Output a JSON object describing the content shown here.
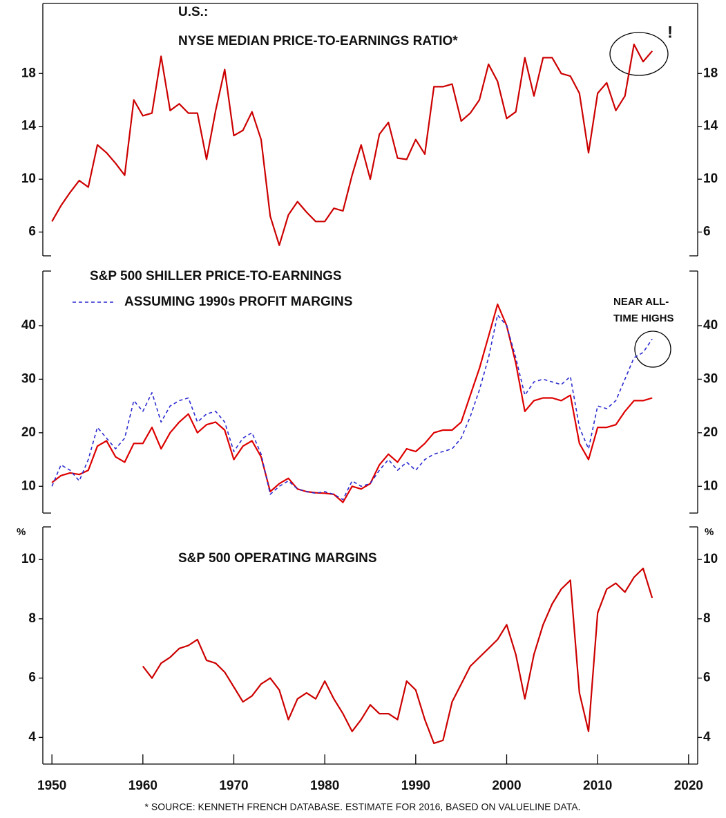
{
  "chart_data": [
    {
      "type": "line",
      "title": "U.S.:",
      "subtitle": "NYSE MEDIAN PRICE-TO-EARNINGS RATIO*",
      "annotation": "!",
      "xlim": [
        1949,
        2021
      ],
      "ylim": [
        4.2,
        23.3
      ],
      "yticks": [
        6,
        10,
        14,
        18
      ],
      "x": [
        1950,
        1951,
        1952,
        1953,
        1954,
        1955,
        1956,
        1957,
        1958,
        1959,
        1960,
        1961,
        1962,
        1963,
        1964,
        1965,
        1966,
        1967,
        1968,
        1969,
        1970,
        1971,
        1972,
        1973,
        1974,
        1975,
        1976,
        1977,
        1978,
        1979,
        1980,
        1981,
        1982,
        1983,
        1984,
        1985,
        1986,
        1987,
        1988,
        1989,
        1990,
        1991,
        1992,
        1993,
        1994,
        1995,
        1996,
        1997,
        1998,
        1999,
        2000,
        2001,
        2002,
        2003,
        2004,
        2005,
        2006,
        2007,
        2008,
        2009,
        2010,
        2011,
        2012,
        2013,
        2014,
        2015,
        2016
      ],
      "series": [
        {
          "color": "#cc0000",
          "values": [
            6.8,
            8,
            9,
            9.9,
            9.4,
            12.6,
            12,
            11.2,
            10.3,
            16,
            14.8,
            15,
            19.3,
            15.2,
            15.7,
            15,
            15,
            11.5,
            15.2,
            18.3,
            13.3,
            13.7,
            15.1,
            13,
            7.2,
            5,
            7.3,
            8.3,
            7.5,
            6.8,
            6.8,
            7.8,
            7.6,
            10.3,
            12.6,
            10,
            13.4,
            14.3,
            11.6,
            11.5,
            13,
            11.9,
            17,
            17,
            17.2,
            14.4,
            15,
            16,
            18.7,
            17.4,
            14.6,
            15.1,
            19.2,
            16.3,
            19.2,
            19.2,
            18,
            17.8,
            16.5,
            12,
            16.5,
            17.3,
            15.2,
            16.3,
            20.2,
            18.9,
            19.7
          ]
        }
      ]
    },
    {
      "type": "line",
      "annotation": [
        "NEAR ALL-",
        "TIME HIGHS"
      ],
      "xlim": [
        1949,
        2021
      ],
      "ylim": [
        5,
        50.2
      ],
      "yticks": [
        10,
        20,
        30,
        40
      ],
      "x": [
        1950,
        1951,
        1952,
        1953,
        1954,
        1955,
        1956,
        1957,
        1958,
        1959,
        1960,
        1961,
        1962,
        1963,
        1964,
        1965,
        1966,
        1967,
        1968,
        1969,
        1970,
        1971,
        1972,
        1973,
        1974,
        1975,
        1976,
        1977,
        1978,
        1979,
        1980,
        1981,
        1982,
        1983,
        1984,
        1985,
        1986,
        1987,
        1988,
        1989,
        1990,
        1991,
        1992,
        1993,
        1994,
        1995,
        1996,
        1997,
        1998,
        1999,
        2000,
        2001,
        2002,
        2003,
        2004,
        2005,
        2006,
        2007,
        2008,
        2009,
        2010,
        2011,
        2012,
        2013,
        2014,
        2015,
        2016
      ],
      "series": [
        {
          "name": "S&P 500 SHILLER PRICE-TO-EARNINGS",
          "color": "#dd0000",
          "dashed": false,
          "values": [
            10.7,
            12,
            12.5,
            12.2,
            13,
            17.5,
            18.5,
            15.5,
            14.5,
            18,
            18,
            21,
            17,
            20,
            22,
            23.5,
            20,
            21.5,
            22,
            20.5,
            15,
            17.5,
            18.5,
            15.5,
            9,
            10.5,
            11.5,
            9.5,
            9,
            8.8,
            8.7,
            8.5,
            7,
            10,
            9.5,
            10.5,
            14,
            16,
            14.5,
            17,
            16.5,
            18,
            20,
            20.5,
            20.5,
            22,
            27,
            32,
            38,
            44,
            40,
            33,
            24,
            26,
            26.5,
            26.5,
            26,
            27,
            18,
            15,
            21,
            21,
            21.5,
            24,
            26,
            26,
            26.5
          ]
        },
        {
          "name": "ASSUMING 1990s PROFIT MARGINS",
          "color": "#2a2ad0",
          "dashed": true,
          "values": [
            10,
            14,
            13,
            11,
            15,
            21,
            19,
            17,
            19,
            26,
            24,
            27.5,
            22,
            25,
            26,
            26.5,
            22,
            23.5,
            24,
            22,
            16.5,
            19,
            20,
            16,
            8.5,
            10,
            11,
            9.5,
            9,
            8.7,
            9,
            8.5,
            7.5,
            11,
            10,
            10.5,
            13,
            15,
            13,
            14.5,
            13,
            15,
            16,
            16.5,
            17,
            19,
            23,
            28,
            34,
            42,
            40,
            34,
            27,
            29.5,
            30,
            29.5,
            29,
            30.5,
            21,
            17,
            25,
            24.5,
            26,
            30,
            34,
            35,
            37.5
          ]
        }
      ]
    },
    {
      "type": "line",
      "title": "S&P 500 OPERATING MARGINS",
      "unit": "%",
      "xlim": [
        1949,
        2021
      ],
      "xticks": [
        1950,
        1960,
        1970,
        1980,
        1990,
        2000,
        2010,
        2020
      ],
      "ylim": [
        3.1,
        11.1
      ],
      "yticks": [
        4,
        6,
        8,
        10
      ],
      "x": [
        1960,
        1961,
        1962,
        1963,
        1964,
        1965,
        1966,
        1967,
        1968,
        1969,
        1970,
        1971,
        1972,
        1973,
        1974,
        1975,
        1976,
        1977,
        1978,
        1979,
        1980,
        1981,
        1982,
        1983,
        1984,
        1985,
        1986,
        1987,
        1988,
        1989,
        1990,
        1991,
        1992,
        1993,
        1994,
        1995,
        1996,
        1997,
        1998,
        1999,
        2000,
        2001,
        2002,
        2003,
        2004,
        2005,
        2006,
        2007,
        2008,
        2009,
        2010,
        2011,
        2012,
        2013,
        2014,
        2015,
        2016
      ],
      "series": [
        {
          "color": "#cc0000",
          "values": [
            6.4,
            6,
            6.5,
            6.7,
            7,
            7.1,
            7.3,
            6.6,
            6.5,
            6.2,
            5.7,
            5.2,
            5.4,
            5.8,
            6,
            5.6,
            4.6,
            5.3,
            5.5,
            5.3,
            5.9,
            5.3,
            4.8,
            4.2,
            4.6,
            5.1,
            4.8,
            4.8,
            4.6,
            5.9,
            5.6,
            4.6,
            3.8,
            3.9,
            5.2,
            5.8,
            6.4,
            6.7,
            7,
            7.3,
            7.8,
            6.8,
            5.3,
            6.8,
            7.8,
            8.5,
            9,
            9.3,
            5.5,
            4.2,
            8.2,
            9,
            9.2,
            8.9,
            9.4,
            9.7,
            8.7
          ]
        }
      ]
    }
  ],
  "footnote": "* SOURCE: KENNETH FRENCH DATABASE. ESTIMATE FOR 2016, BASED ON VALUELINE DATA."
}
